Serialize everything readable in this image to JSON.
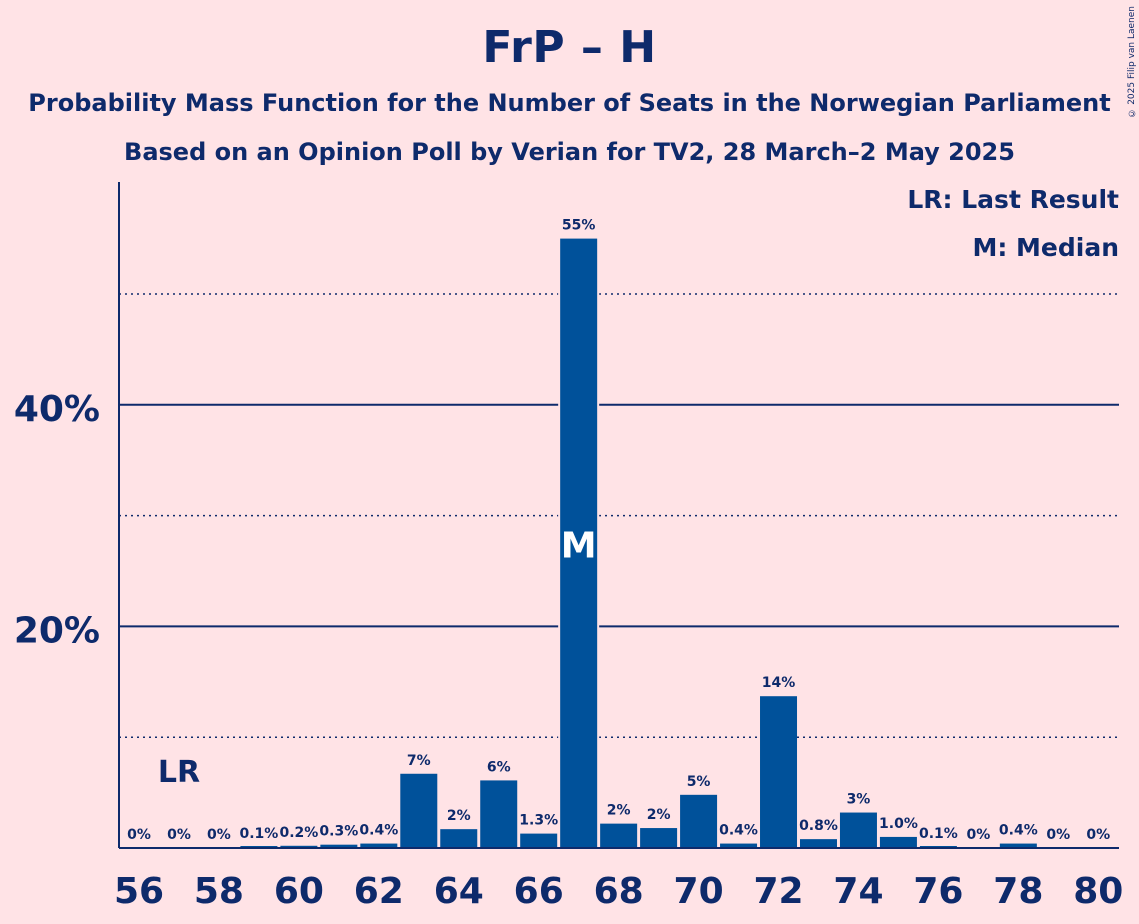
{
  "title": "FrP – H",
  "subtitle_line1": "Probability Mass Function for the Number of Seats in the Norwegian Parliament",
  "subtitle_line2": "Based on an Opinion Poll by Verian for TV2, 28 March–2 May 2025",
  "copyright": "© 2025 Filip van Laenen",
  "legend": {
    "last_result": "LR: Last Result",
    "median": "M: Median"
  },
  "colors": {
    "background": "#FFE3E6",
    "bar": "#00519A",
    "text": "#0E2A6B"
  },
  "chart_data": {
    "type": "bar",
    "title": "FrP – H",
    "xlabel": "",
    "ylabel": "",
    "ylim": [
      0,
      60
    ],
    "y_ticks_solid": [
      20,
      40
    ],
    "y_ticks_dotted": [
      10,
      30,
      50
    ],
    "y_tick_labels": [
      "20%",
      "40%"
    ],
    "x_tick_labels": [
      "56",
      "58",
      "60",
      "62",
      "64",
      "66",
      "68",
      "70",
      "72",
      "74",
      "76",
      "78",
      "80"
    ],
    "categories": [
      56,
      57,
      58,
      59,
      60,
      61,
      62,
      63,
      64,
      65,
      66,
      67,
      68,
      69,
      70,
      71,
      72,
      73,
      74,
      75,
      76,
      77,
      78,
      79,
      80
    ],
    "values": [
      0,
      0,
      0,
      0.1,
      0.2,
      0.3,
      0.4,
      6.7,
      1.7,
      6.1,
      1.3,
      55,
      2.2,
      1.8,
      4.8,
      0.4,
      13.7,
      0.8,
      3.2,
      1.0,
      0.1,
      0,
      0.4,
      0,
      0
    ],
    "labels": [
      "0%",
      "0%",
      "0%",
      "0.1%",
      "0.2%",
      "0.3%",
      "0.4%",
      "7%",
      "2%",
      "6%",
      "1.3%",
      "55%",
      "2%",
      "2%",
      "5%",
      "0.4%",
      "14%",
      "0.8%",
      "3%",
      "1.0%",
      "0.1%",
      "0%",
      "0.4%",
      "0%",
      "0%"
    ],
    "last_result": {
      "seat": 57,
      "marker": "LR"
    },
    "median": {
      "seat": 67,
      "marker": "M"
    }
  }
}
